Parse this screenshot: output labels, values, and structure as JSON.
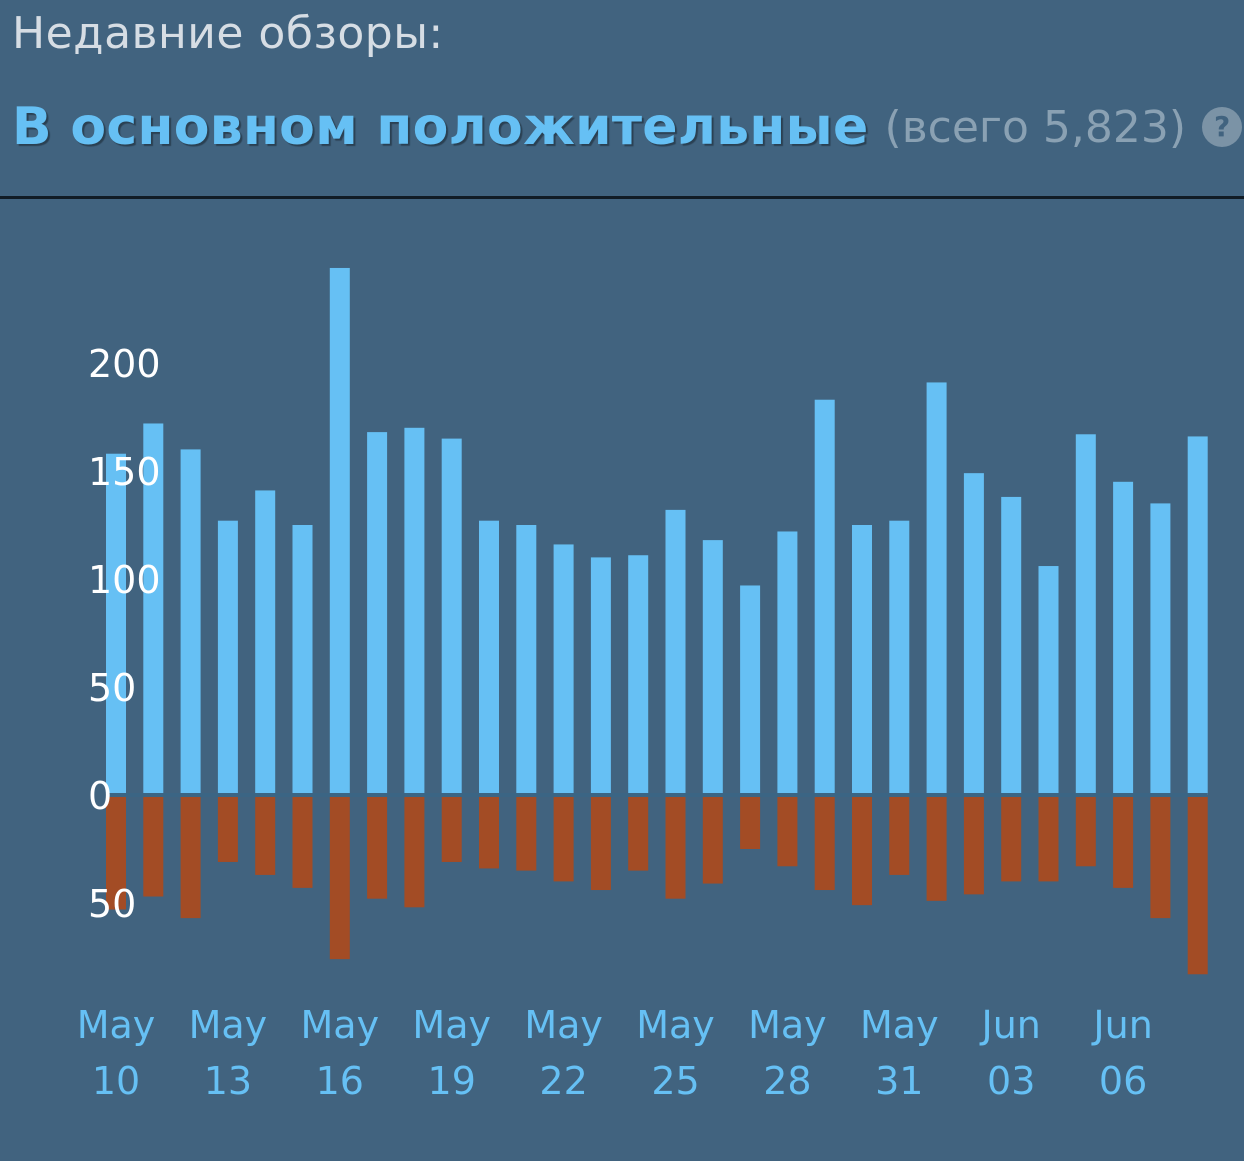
{
  "header": {
    "title": "Недавние обзоры:",
    "summary_label": "В основном положительные",
    "summary_count": "(всего 5,823)",
    "help_icon": "?"
  },
  "colors": {
    "background": "#41637f",
    "positive": "#66c0f4",
    "negative": "#a34c25",
    "zero_line": "#3b6584"
  },
  "chart_data": {
    "type": "bar",
    "title": "",
    "xlabel": "",
    "ylabel": "",
    "x": [
      "May 10",
      "May 11",
      "May 12",
      "May 13",
      "May 14",
      "May 15",
      "May 16",
      "May 17",
      "May 18",
      "May 19",
      "May 20",
      "May 21",
      "May 22",
      "May 23",
      "May 24",
      "May 25",
      "May 26",
      "May 27",
      "May 28",
      "May 29",
      "May 30",
      "May 31",
      "Jun 01",
      "Jun 02",
      "Jun 03",
      "Jun 04",
      "Jun 05",
      "Jun 06",
      "Jun 07",
      "Jun 08"
    ],
    "series": [
      {
        "kind": "positive",
        "values": [
          158,
          172,
          160,
          127,
          141,
          125,
          244,
          168,
          170,
          165,
          127,
          125,
          116,
          110,
          111,
          132,
          118,
          97,
          122,
          183,
          125,
          127,
          191,
          149,
          138,
          106,
          167,
          145,
          135,
          166
        ]
      },
      {
        "kind": "negative",
        "values": [
          53,
          47,
          57,
          31,
          37,
          43,
          76,
          48,
          52,
          31,
          34,
          35,
          40,
          44,
          35,
          48,
          41,
          25,
          33,
          44,
          51,
          37,
          49,
          46,
          40,
          40,
          33,
          43,
          57,
          83
        ]
      }
    ],
    "y_ticks": [
      {
        "value": 200,
        "label": "200"
      },
      {
        "value": 150,
        "label": "150"
      },
      {
        "value": 100,
        "label": "100"
      },
      {
        "value": 50,
        "label": "50"
      },
      {
        "value": 0,
        "label": "0"
      },
      {
        "value": -50,
        "label": "50"
      }
    ],
    "x_tick_labels": [
      {
        "index": 0,
        "month": "May",
        "day": "10"
      },
      {
        "index": 3,
        "month": "May",
        "day": "13"
      },
      {
        "index": 6,
        "month": "May",
        "day": "16"
      },
      {
        "index": 9,
        "month": "May",
        "day": "19"
      },
      {
        "index": 12,
        "month": "May",
        "day": "22"
      },
      {
        "index": 15,
        "month": "May",
        "day": "25"
      },
      {
        "index": 18,
        "month": "May",
        "day": "28"
      },
      {
        "index": 21,
        "month": "May",
        "day": "31"
      },
      {
        "index": 24,
        "month": "Jun",
        "day": "03"
      },
      {
        "index": 27,
        "month": "Jun",
        "day": "06"
      }
    ],
    "ylim": [
      -83,
      244
    ],
    "grid": false,
    "legend": "none"
  }
}
